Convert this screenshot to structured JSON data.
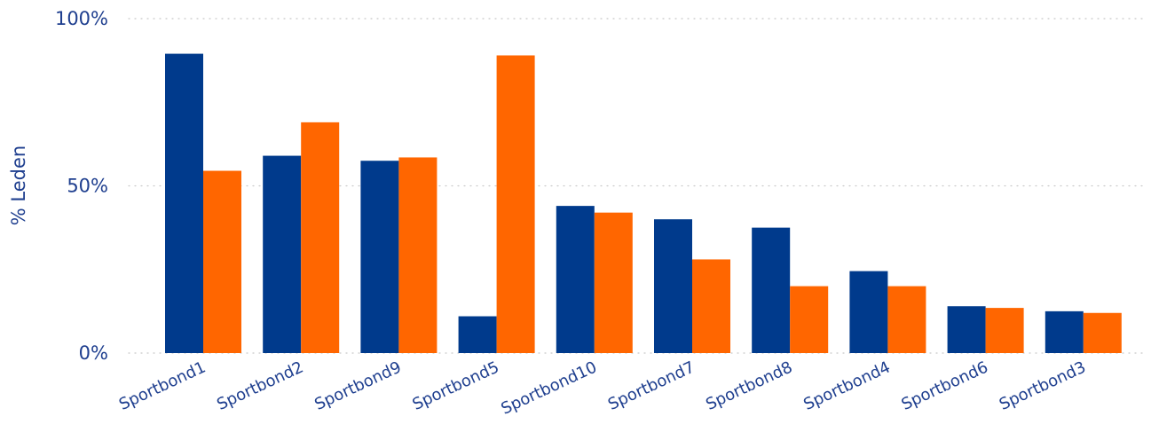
{
  "chart_data": {
    "type": "bar",
    "ylabel": "% Leden",
    "ylim": [
      0,
      100
    ],
    "yticks": [
      {
        "value": 0,
        "label": "0%"
      },
      {
        "value": 50,
        "label": "50%"
      },
      {
        "value": 100,
        "label": "100%"
      }
    ],
    "grid": true,
    "categories": [
      "Sportbond1",
      "Sportbond2",
      "Sportbond9",
      "Sportbond5",
      "Sportbond10",
      "Sportbond7",
      "Sportbond8",
      "Sportbond4",
      "Sportbond6",
      "Sportbond3"
    ],
    "series": [
      {
        "color": "#003a8c",
        "values": [
          89.5,
          59,
          57.5,
          11,
          44,
          40,
          37.5,
          24.5,
          14,
          12.5
        ]
      },
      {
        "color": "#ff6600",
        "values": [
          54.5,
          69,
          58.5,
          89,
          42,
          28,
          20,
          20,
          13.5,
          12
        ]
      }
    ],
    "text_color": "#1f3f8f",
    "grid_color": "#c8c8c8"
  }
}
